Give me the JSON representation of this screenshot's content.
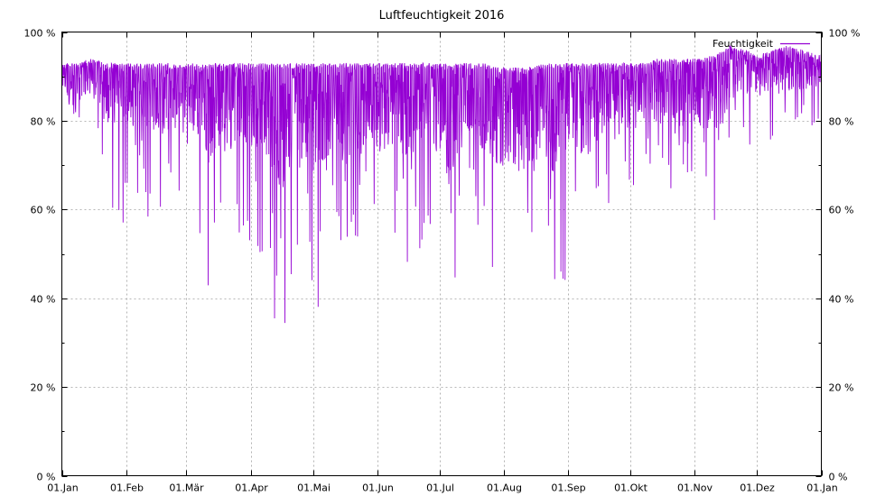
{
  "chart_data": {
    "type": "line",
    "title": "Luftfeuchtigkeit 2016",
    "xlabel": "",
    "ylabel": "",
    "x_ticks": [
      "01.Jan",
      "01.Feb",
      "01.Mär",
      "01.Apr",
      "01.Mai",
      "01.Jun",
      "01.Jul",
      "01.Aug",
      "01.Sep",
      "01.Okt",
      "01.Nov",
      "01.Dez",
      "01.Jan"
    ],
    "x_tick_days": [
      0,
      31,
      60,
      91,
      121,
      152,
      182,
      213,
      244,
      274,
      305,
      335,
      366
    ],
    "y_ticks": [
      "0 %",
      "20 %",
      "40 %",
      "60 %",
      "80 %",
      "100 %"
    ],
    "y_tick_values": [
      0,
      20,
      40,
      60,
      80,
      100
    ],
    "xlim": [
      "2016-01-01",
      "2017-01-01"
    ],
    "ylim": [
      0,
      100
    ],
    "grid": true,
    "legend_position": "top-right",
    "series": [
      {
        "name": "Feuchtigkeit",
        "color": "#9400d3",
        "x": [
          "2016-01-01",
          "2016-01-08",
          "2016-01-15",
          "2016-01-22",
          "2016-01-29",
          "2016-02-05",
          "2016-02-12",
          "2016-02-19",
          "2016-02-26",
          "2016-03-04",
          "2016-03-11",
          "2016-03-18",
          "2016-03-25",
          "2016-04-01",
          "2016-04-08",
          "2016-04-15",
          "2016-04-22",
          "2016-04-29",
          "2016-05-06",
          "2016-05-13",
          "2016-05-20",
          "2016-05-27",
          "2016-06-03",
          "2016-06-10",
          "2016-06-17",
          "2016-06-24",
          "2016-07-01",
          "2016-07-08",
          "2016-07-15",
          "2016-07-22",
          "2016-07-29",
          "2016-08-05",
          "2016-08-12",
          "2016-08-19",
          "2016-08-26",
          "2016-09-02",
          "2016-09-09",
          "2016-09-16",
          "2016-09-23",
          "2016-09-30",
          "2016-10-07",
          "2016-10-14",
          "2016-10-21",
          "2016-10-28",
          "2016-11-04",
          "2016-11-11",
          "2016-11-18",
          "2016-11-25",
          "2016-12-02",
          "2016-12-09",
          "2016-12-16",
          "2016-12-23",
          "2016-12-30"
        ],
        "max": [
          93,
          93,
          94,
          93,
          93,
          93,
          93,
          93,
          93,
          93,
          93,
          93,
          93,
          93,
          93,
          93,
          93,
          93,
          93,
          93,
          93,
          93,
          93,
          93,
          93,
          93,
          93,
          93,
          93,
          93,
          92,
          92,
          92,
          93,
          93,
          93,
          93,
          93,
          93,
          93,
          93,
          94,
          94,
          94,
          94,
          95,
          97,
          96,
          95,
          96,
          97,
          96,
          95
        ],
        "min": [
          84,
          60,
          82,
          62,
          55,
          61,
          56,
          58,
          61,
          60,
          42,
          53,
          50,
          52,
          48,
          27,
          43,
          31,
          40,
          46,
          38,
          52,
          48,
          52,
          42,
          52,
          42,
          37,
          55,
          50,
          43,
          39,
          40,
          44,
          36,
          48,
          45,
          55,
          65,
          60,
          70,
          67,
          62,
          48,
          60,
          52,
          68,
          73,
          75,
          76,
          73,
          74,
          80
        ]
      }
    ]
  }
}
